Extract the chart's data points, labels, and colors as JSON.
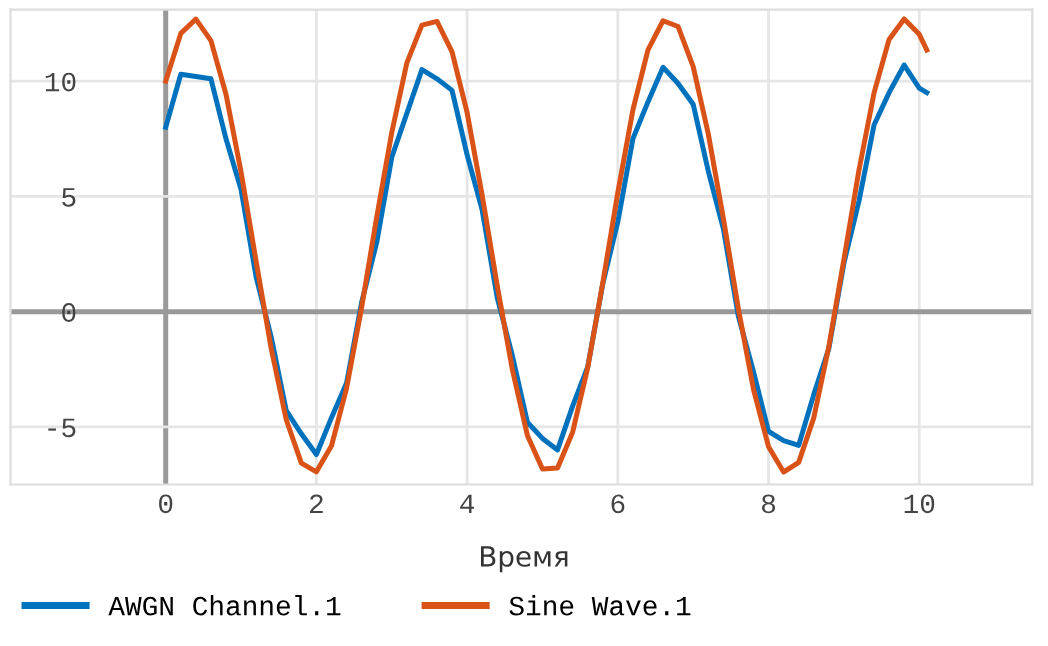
{
  "chart_data": {
    "type": "line",
    "xlabel": "Время",
    "xlim": [
      -2.06,
      11.5
    ],
    "ylim": [
      -7.5,
      13.1
    ],
    "xticks": [
      0,
      2,
      4,
      6,
      8,
      10
    ],
    "yticks": [
      -5,
      0,
      5,
      10
    ],
    "grid": true,
    "legend": "bottom",
    "marker": "none",
    "line_style": "solid",
    "x": [
      0,
      0.2,
      0.4,
      0.6,
      0.8,
      1.0,
      1.2,
      1.4,
      1.6,
      1.8,
      2.0,
      2.2,
      2.4,
      2.6,
      2.8,
      3.0,
      3.2,
      3.4,
      3.6,
      3.8,
      4.0,
      4.2,
      4.4,
      4.6,
      4.8,
      5.0,
      5.2,
      5.4,
      5.6,
      5.8,
      6.0,
      6.2,
      6.4,
      6.6,
      6.8,
      7.0,
      7.2,
      7.4,
      7.6,
      7.8,
      8.0,
      8.2,
      8.4,
      8.6,
      8.8,
      9.0,
      9.2,
      9.4,
      9.6,
      9.8,
      10.0,
      10.1
    ],
    "series": [
      {
        "name": "AWGN Channel.1",
        "color": "#0072bd",
        "values": [
          8.0,
          10.3,
          10.2,
          10.1,
          7.5,
          5.3,
          1.5,
          -1.1,
          -4.3,
          -5.3,
          -6.2,
          -4.6,
          -3.1,
          0.4,
          3.0,
          6.7,
          8.6,
          10.5,
          10.1,
          9.6,
          6.8,
          4.4,
          0.6,
          -1.9,
          -4.8,
          -5.5,
          -6.0,
          -4.1,
          -2.4,
          1.2,
          3.9,
          7.5,
          9.1,
          10.6,
          9.9,
          9.0,
          6.1,
          3.6,
          -0.2,
          -2.6,
          -5.2,
          -5.6,
          -5.8,
          -3.6,
          -1.6,
          2.1,
          4.8,
          8.1,
          9.5,
          10.7,
          9.7,
          9.5
        ]
      },
      {
        "name": "Sine Wave.1",
        "color": "#d95319",
        "values": [
          10.0,
          12.07,
          12.69,
          11.76,
          9.43,
          6.06,
          2.18,
          -1.6,
          -4.69,
          -6.57,
          -6.95,
          -5.82,
          -3.33,
          0.18,
          4.1,
          7.77,
          10.79,
          12.43,
          12.59,
          11.27,
          8.63,
          5.04,
          1.12,
          -2.51,
          -5.37,
          -6.83,
          -6.78,
          -5.23,
          -2.44,
          1.24,
          5.17,
          8.75,
          11.36,
          12.62,
          12.37,
          10.63,
          7.72,
          4.05,
          0.12,
          -3.37,
          -5.86,
          -6.96,
          -6.54,
          -4.61,
          -1.52,
          2.26,
          6.14,
          9.49,
          11.81,
          12.7,
          12.03,
          11.35
        ]
      }
    ]
  }
}
